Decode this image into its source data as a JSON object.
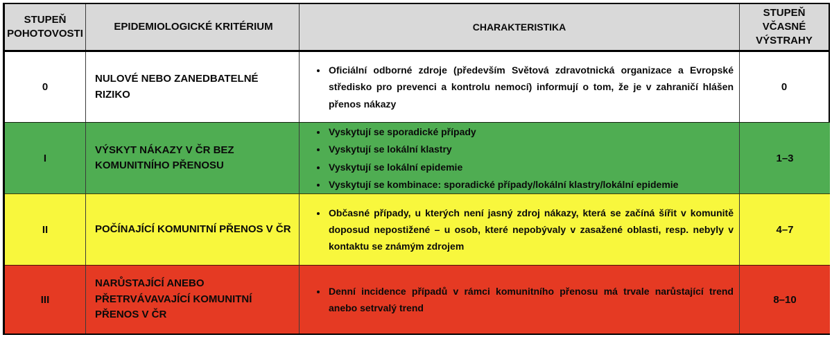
{
  "colors": {
    "header_bg": "#d9d9d9",
    "row0_bg": "#ffffff",
    "row1_bg": "#4fad52",
    "row2_bg": "#f8f73d",
    "row3_bg": "#e53a23"
  },
  "table": {
    "headers": {
      "alert_level": "STUPEŇ POHOTOVOSTI",
      "criterion": "EPIDEMIOLOGICKÉ KRITÉRIUM",
      "characteristics": "CHARAKTERISTIKA",
      "early_warning": "STUPEŇ VČASNÉ VÝSTRAHY"
    },
    "rows": [
      {
        "level": "0",
        "criterion": "NULOVÉ NEBO ZANEDBATELNÉ RIZIKO",
        "characteristics": [
          "Oficiální odborné zdroje (především Světová zdravotnická organizace a Evropské středisko pro prevenci a kontrolu nemocí) informují o tom, že je v zahraničí hlášen přenos nákazy"
        ],
        "early_warning": "0"
      },
      {
        "level": "I",
        "criterion": "VÝSKYT NÁKAZY V ČR BEZ KOMUNITNÍHO PŘENOSU",
        "characteristics": [
          "Vyskytují se sporadické případy",
          "Vyskytují se lokální klastry",
          "Vyskytují se lokální epidemie",
          "Vyskytují se kombinace: sporadické případy/lokální klastry/lokální epidemie"
        ],
        "early_warning": "1–3"
      },
      {
        "level": "II",
        "criterion": "POČÍNAJÍCÍ KOMUNITNÍ PŘENOS V ČR",
        "characteristics": [
          "Občasné případy, u kterých není jasný zdroj nákazy, která se začíná šířit v komunitě doposud nepostižené – u osob, které nepobývaly v zasažené oblasti, resp. nebyly v kontaktu se známým zdrojem"
        ],
        "early_warning": "4–7"
      },
      {
        "level": "III",
        "criterion": "NARŮSTAJÍCÍ ANEBO PŘETRVÁVAVAJÍCÍ KOMUNITNÍ PŘENOS V ČR",
        "characteristics": [
          "Denní incidence případů v rámci komunitního přenosu má trvale narůstající trend anebo setrvalý trend"
        ],
        "early_warning": "8–10"
      }
    ]
  }
}
